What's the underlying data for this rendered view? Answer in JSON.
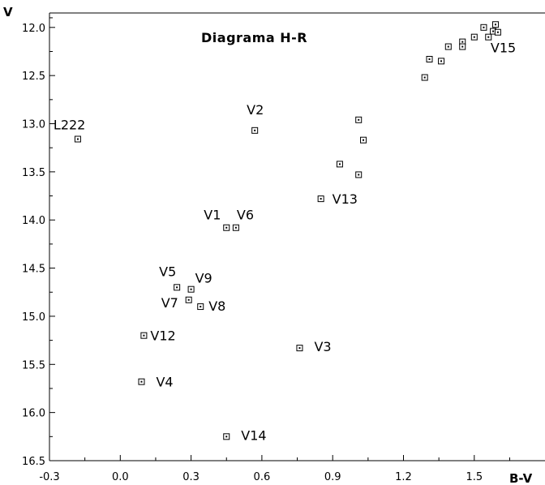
{
  "chart_data": {
    "type": "scatter",
    "title": "Diagrama H-R",
    "xlabel": "B-V",
    "ylabel": "V",
    "xlim": [
      -0.3,
      1.7
    ],
    "ylim": [
      16.5,
      11.85
    ],
    "y_inverted": true,
    "xticks": [
      "-0.3",
      "0.0",
      "0.3",
      "0.6",
      "0.9",
      "1.2",
      "1.5"
    ],
    "yticks": [
      "12.0",
      "12.5",
      "13.0",
      "13.5",
      "14.0",
      "14.5",
      "15.0",
      "15.5",
      "16.0",
      "16.5"
    ],
    "labeled_points": [
      {
        "label": "L222",
        "x": -0.18,
        "y": 13.16
      },
      {
        "label": "V2",
        "x": 0.57,
        "y": 13.07
      },
      {
        "label": "V1",
        "x": 0.45,
        "y": 14.08
      },
      {
        "label": "V6",
        "x": 0.49,
        "y": 14.08
      },
      {
        "label": "V5",
        "x": 0.24,
        "y": 14.7
      },
      {
        "label": "V9",
        "x": 0.3,
        "y": 14.72
      },
      {
        "label": "V7",
        "x": 0.29,
        "y": 14.83
      },
      {
        "label": "V8",
        "x": 0.34,
        "y": 14.9
      },
      {
        "label": "V12",
        "x": 0.1,
        "y": 15.2
      },
      {
        "label": "V4",
        "x": 0.09,
        "y": 15.68
      },
      {
        "label": "V14",
        "x": 0.45,
        "y": 16.25
      },
      {
        "label": "V3",
        "x": 0.76,
        "y": 15.33
      },
      {
        "label": "V13",
        "x": 0.85,
        "y": 13.78
      },
      {
        "label": "V15",
        "x": 1.6,
        "y": 12.05
      }
    ],
    "unlabeled_points": [
      {
        "x": 1.01,
        "y": 12.96
      },
      {
        "x": 1.03,
        "y": 13.17
      },
      {
        "x": 0.93,
        "y": 13.42
      },
      {
        "x": 1.01,
        "y": 13.53
      },
      {
        "x": 1.29,
        "y": 12.52
      },
      {
        "x": 1.31,
        "y": 12.33
      },
      {
        "x": 1.36,
        "y": 12.35
      },
      {
        "x": 1.39,
        "y": 12.2
      },
      {
        "x": 1.45,
        "y": 12.15
      },
      {
        "x": 1.45,
        "y": 12.2
      },
      {
        "x": 1.5,
        "y": 12.1
      },
      {
        "x": 1.54,
        "y": 12.0
      },
      {
        "x": 1.56,
        "y": 12.1
      },
      {
        "x": 1.58,
        "y": 12.04
      },
      {
        "x": 1.59,
        "y": 11.97
      }
    ]
  }
}
